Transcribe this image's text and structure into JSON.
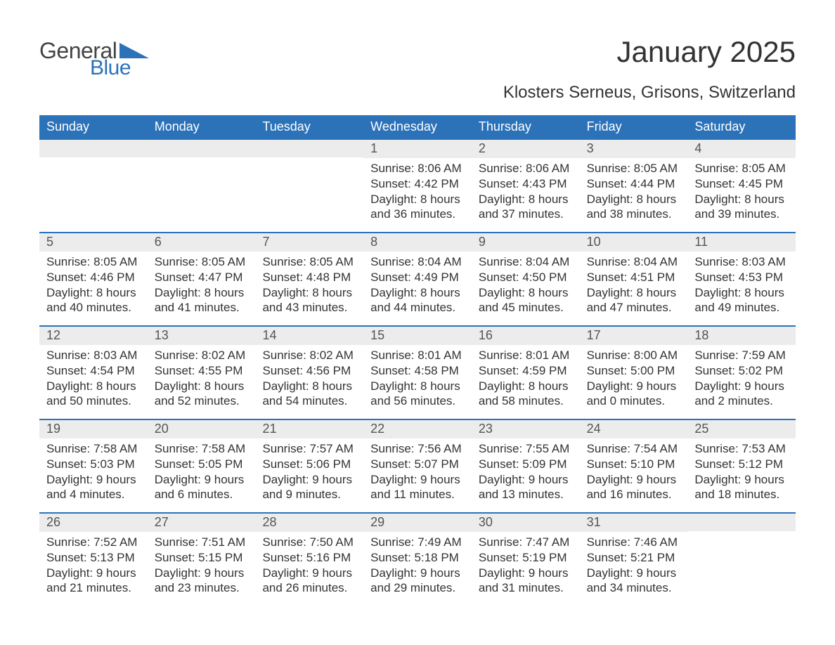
{
  "logo": {
    "general": "General",
    "blue": "Blue",
    "tri_color": "#2b72b9"
  },
  "title": "January 2025",
  "subtitle": "Klosters Serneus, Grisons, Switzerland",
  "colors": {
    "header_bg": "#2b72b9",
    "header_text": "#ffffff",
    "daynum_bg": "#ececec",
    "text": "#333333",
    "week_border": "#2b72b9",
    "background": "#ffffff",
    "logo_general": "#444444",
    "logo_blue": "#2b72b9"
  },
  "typography": {
    "title_fontsize": 42,
    "subtitle_fontsize": 24,
    "header_fontsize": 18,
    "daynum_fontsize": 18,
    "body_fontsize": 17
  },
  "layout": {
    "columns": 7,
    "rows": 5,
    "first_day_column_index": 3
  },
  "day_header": [
    "Sunday",
    "Monday",
    "Tuesday",
    "Wednesday",
    "Thursday",
    "Friday",
    "Saturday"
  ],
  "days": [
    {
      "n": 1,
      "sunrise": "8:06 AM",
      "sunset": "4:42 PM",
      "daylight": "8 hours and 36 minutes."
    },
    {
      "n": 2,
      "sunrise": "8:06 AM",
      "sunset": "4:43 PM",
      "daylight": "8 hours and 37 minutes."
    },
    {
      "n": 3,
      "sunrise": "8:05 AM",
      "sunset": "4:44 PM",
      "daylight": "8 hours and 38 minutes."
    },
    {
      "n": 4,
      "sunrise": "8:05 AM",
      "sunset": "4:45 PM",
      "daylight": "8 hours and 39 minutes."
    },
    {
      "n": 5,
      "sunrise": "8:05 AM",
      "sunset": "4:46 PM",
      "daylight": "8 hours and 40 minutes."
    },
    {
      "n": 6,
      "sunrise": "8:05 AM",
      "sunset": "4:47 PM",
      "daylight": "8 hours and 41 minutes."
    },
    {
      "n": 7,
      "sunrise": "8:05 AM",
      "sunset": "4:48 PM",
      "daylight": "8 hours and 43 minutes."
    },
    {
      "n": 8,
      "sunrise": "8:04 AM",
      "sunset": "4:49 PM",
      "daylight": "8 hours and 44 minutes."
    },
    {
      "n": 9,
      "sunrise": "8:04 AM",
      "sunset": "4:50 PM",
      "daylight": "8 hours and 45 minutes."
    },
    {
      "n": 10,
      "sunrise": "8:04 AM",
      "sunset": "4:51 PM",
      "daylight": "8 hours and 47 minutes."
    },
    {
      "n": 11,
      "sunrise": "8:03 AM",
      "sunset": "4:53 PM",
      "daylight": "8 hours and 49 minutes."
    },
    {
      "n": 12,
      "sunrise": "8:03 AM",
      "sunset": "4:54 PM",
      "daylight": "8 hours and 50 minutes."
    },
    {
      "n": 13,
      "sunrise": "8:02 AM",
      "sunset": "4:55 PM",
      "daylight": "8 hours and 52 minutes."
    },
    {
      "n": 14,
      "sunrise": "8:02 AM",
      "sunset": "4:56 PM",
      "daylight": "8 hours and 54 minutes."
    },
    {
      "n": 15,
      "sunrise": "8:01 AM",
      "sunset": "4:58 PM",
      "daylight": "8 hours and 56 minutes."
    },
    {
      "n": 16,
      "sunrise": "8:01 AM",
      "sunset": "4:59 PM",
      "daylight": "8 hours and 58 minutes."
    },
    {
      "n": 17,
      "sunrise": "8:00 AM",
      "sunset": "5:00 PM",
      "daylight": "9 hours and 0 minutes."
    },
    {
      "n": 18,
      "sunrise": "7:59 AM",
      "sunset": "5:02 PM",
      "daylight": "9 hours and 2 minutes."
    },
    {
      "n": 19,
      "sunrise": "7:58 AM",
      "sunset": "5:03 PM",
      "daylight": "9 hours and 4 minutes."
    },
    {
      "n": 20,
      "sunrise": "7:58 AM",
      "sunset": "5:05 PM",
      "daylight": "9 hours and 6 minutes."
    },
    {
      "n": 21,
      "sunrise": "7:57 AM",
      "sunset": "5:06 PM",
      "daylight": "9 hours and 9 minutes."
    },
    {
      "n": 22,
      "sunrise": "7:56 AM",
      "sunset": "5:07 PM",
      "daylight": "9 hours and 11 minutes."
    },
    {
      "n": 23,
      "sunrise": "7:55 AM",
      "sunset": "5:09 PM",
      "daylight": "9 hours and 13 minutes."
    },
    {
      "n": 24,
      "sunrise": "7:54 AM",
      "sunset": "5:10 PM",
      "daylight": "9 hours and 16 minutes."
    },
    {
      "n": 25,
      "sunrise": "7:53 AM",
      "sunset": "5:12 PM",
      "daylight": "9 hours and 18 minutes."
    },
    {
      "n": 26,
      "sunrise": "7:52 AM",
      "sunset": "5:13 PM",
      "daylight": "9 hours and 21 minutes."
    },
    {
      "n": 27,
      "sunrise": "7:51 AM",
      "sunset": "5:15 PM",
      "daylight": "9 hours and 23 minutes."
    },
    {
      "n": 28,
      "sunrise": "7:50 AM",
      "sunset": "5:16 PM",
      "daylight": "9 hours and 26 minutes."
    },
    {
      "n": 29,
      "sunrise": "7:49 AM",
      "sunset": "5:18 PM",
      "daylight": "9 hours and 29 minutes."
    },
    {
      "n": 30,
      "sunrise": "7:47 AM",
      "sunset": "5:19 PM",
      "daylight": "9 hours and 31 minutes."
    },
    {
      "n": 31,
      "sunrise": "7:46 AM",
      "sunset": "5:21 PM",
      "daylight": "9 hours and 34 minutes."
    }
  ],
  "labels": {
    "sunrise": "Sunrise:",
    "sunset": "Sunset:",
    "daylight": "Daylight:"
  }
}
